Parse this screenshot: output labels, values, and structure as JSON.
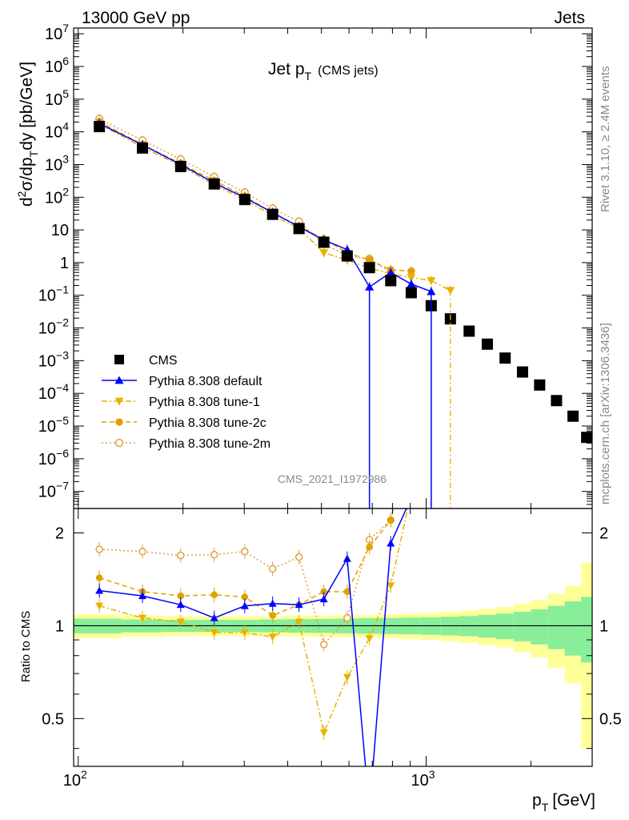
{
  "header": {
    "process": "13000 GeV pp",
    "category": "Jets",
    "rivet_version": "Rivet 3.1.10, ≥ 2.4M events",
    "source": "mcplots.cern.ch [arXiv:1306.3436]",
    "watermark": "CMS_2021_I1972986"
  },
  "main_panel": {
    "title": "Jet p",
    "title_sub": "T",
    "title_note": "(CMS jets)",
    "ylabel_parts": [
      "d",
      "2",
      "σ/dp",
      "T",
      "dy [pb/GeV]"
    ],
    "ytick_labels": [
      {
        "base": "10",
        "exp": "7"
      },
      {
        "base": "10",
        "exp": "6"
      },
      {
        "base": "10",
        "exp": "5"
      },
      {
        "base": "10",
        "exp": "4"
      },
      {
        "base": "10",
        "exp": "3"
      },
      {
        "base": "10",
        "exp": "2"
      },
      {
        "base": "10",
        "exp": ""
      },
      {
        "base": "1",
        "exp": ""
      },
      {
        "base": "10",
        "exp": "−1"
      },
      {
        "base": "10",
        "exp": "−2"
      },
      {
        "base": "10",
        "exp": "−3"
      },
      {
        "base": "10",
        "exp": "−4"
      },
      {
        "base": "10",
        "exp": "−5"
      },
      {
        "base": "10",
        "exp": "−6"
      },
      {
        "base": "10",
        "exp": "−7"
      }
    ]
  },
  "ratio_panel": {
    "ylabel": "Ratio to CMS",
    "ytick_labels": [
      "2",
      "1",
      "0.5"
    ],
    "right_tick_labels": [
      "2",
      "1",
      "0.5"
    ]
  },
  "x_axis": {
    "label": "p",
    "label_sub": "T",
    "label_unit": "[GeV]",
    "tick_labels": [
      {
        "base": "10",
        "exp": "2"
      },
      {
        "base": "10",
        "exp": "3"
      }
    ]
  },
  "legend": {
    "entries": [
      {
        "label": "CMS",
        "color": "#000000",
        "marker": "square",
        "style": "none"
      },
      {
        "label": "Pythia 8.308 default",
        "color": "#0000ff",
        "marker": "triangle-up",
        "style": "solid"
      },
      {
        "label": "Pythia 8.308 tune-1",
        "color": "#e8b200",
        "marker": "triangle-down",
        "style": "dashdot"
      },
      {
        "label": "Pythia 8.308 tune-2c",
        "color": "#e0a000",
        "marker": "circle",
        "style": "dashed"
      },
      {
        "label": "Pythia 8.308 tune-2m",
        "color": "#e0a040",
        "marker": "open-circle",
        "style": "dotted"
      }
    ]
  },
  "chart_data": {
    "type": "scatter",
    "x_scale": "log",
    "y_scale": "log",
    "xlim": [
      97,
      3000
    ],
    "ylim": [
      3e-08,
      15000000.0
    ],
    "ratio_ylim": [
      0.35,
      2.4
    ],
    "bin_edges": [
      97,
      133,
      174,
      220,
      272,
      330,
      395,
      468,
      548,
      638,
      737,
      846,
      967,
      1101,
      1248,
      1410,
      1588,
      1784,
      2000,
      2238,
      2500,
      2787,
      3000
    ],
    "series": [
      {
        "name": "CMS",
        "x": [
          115,
          153,
          197,
          246,
          301,
          362,
          431,
          508,
          593,
          687,
          791,
          906,
          1034,
          1174,
          1329,
          1499,
          1686,
          1892,
          2119,
          2369,
          2643,
          2893
        ],
        "y": [
          14500,
          3200,
          870,
          255,
          85,
          30,
          11,
          4.2,
          1.6,
          0.7,
          0.28,
          0.12,
          0.048,
          0.019,
          0.008,
          0.0032,
          0.0012,
          0.00045,
          0.00018,
          6e-05,
          2e-05,
          4.5e-06
        ]
      },
      {
        "name": "Pythia 8.308 default",
        "x": [
          115,
          153,
          197,
          246,
          301,
          362,
          431,
          508,
          593,
          687,
          791,
          906,
          1034
        ],
        "y": [
          18000,
          4000,
          1000,
          272,
          97,
          34,
          12.5,
          4.9,
          2.5,
          0.18,
          0.5,
          0.22,
          0.13
        ],
        "ratio": [
          1.3,
          1.25,
          1.17,
          1.06,
          1.16,
          1.18,
          1.17,
          1.22,
          1.65,
          0.25,
          1.85,
          2.6,
          2.7
        ]
      },
      {
        "name": "Pythia 8.308 tune-1",
        "x": [
          115,
          153,
          197,
          246,
          301,
          362,
          431,
          508,
          593,
          687,
          791,
          906,
          1034,
          1174
        ],
        "y": [
          17000,
          3400,
          900,
          240,
          82,
          28,
          11.2,
          2.0,
          1.2,
          0.68,
          0.45,
          0.35,
          0.28,
          0.14
        ],
        "ratio": [
          1.16,
          1.06,
          1.03,
          0.95,
          0.95,
          0.92,
          1.03,
          0.45,
          0.68,
          0.91,
          1.35,
          2.7,
          5.0,
          7.0
        ]
      },
      {
        "name": "Pythia 8.308 tune-2c",
        "x": [
          115,
          153,
          197,
          246,
          301,
          362,
          431,
          508,
          593,
          687,
          791,
          906
        ],
        "y": [
          20500,
          4100,
          1080,
          320,
          108,
          33,
          12.6,
          5.3,
          2.0,
          1.2,
          0.6,
          0.55
        ],
        "ratio": [
          1.43,
          1.29,
          1.25,
          1.26,
          1.24,
          1.08,
          1.17,
          1.29,
          1.29,
          1.8,
          2.2,
          4.5
        ]
      },
      {
        "name": "Pythia 8.308 tune-2m",
        "x": [
          115,
          153,
          197,
          246,
          301,
          362,
          431,
          508,
          593,
          687,
          791
        ],
        "y": [
          25000,
          5500,
          1450,
          420,
          140,
          45,
          18,
          3.7,
          1.6,
          1.3,
          0.5
        ],
        "ratio": [
          1.77,
          1.74,
          1.69,
          1.7,
          1.74,
          1.53,
          1.67,
          0.87,
          1.06,
          1.9,
          2.2
        ]
      }
    ],
    "cms_band_inner": [
      0.055,
      0.048,
      0.045,
      0.045,
      0.045,
      0.048,
      0.05,
      0.052,
      0.055,
      0.058,
      0.06,
      0.062,
      0.065,
      0.07,
      0.075,
      0.085,
      0.095,
      0.11,
      0.13,
      0.16,
      0.2,
      0.24
    ],
    "cms_band_outer": [
      0.09,
      0.08,
      0.075,
      0.075,
      0.075,
      0.075,
      0.078,
      0.08,
      0.082,
      0.085,
      0.09,
      0.095,
      0.1,
      0.11,
      0.12,
      0.135,
      0.15,
      0.18,
      0.21,
      0.27,
      0.35,
      0.6
    ]
  }
}
